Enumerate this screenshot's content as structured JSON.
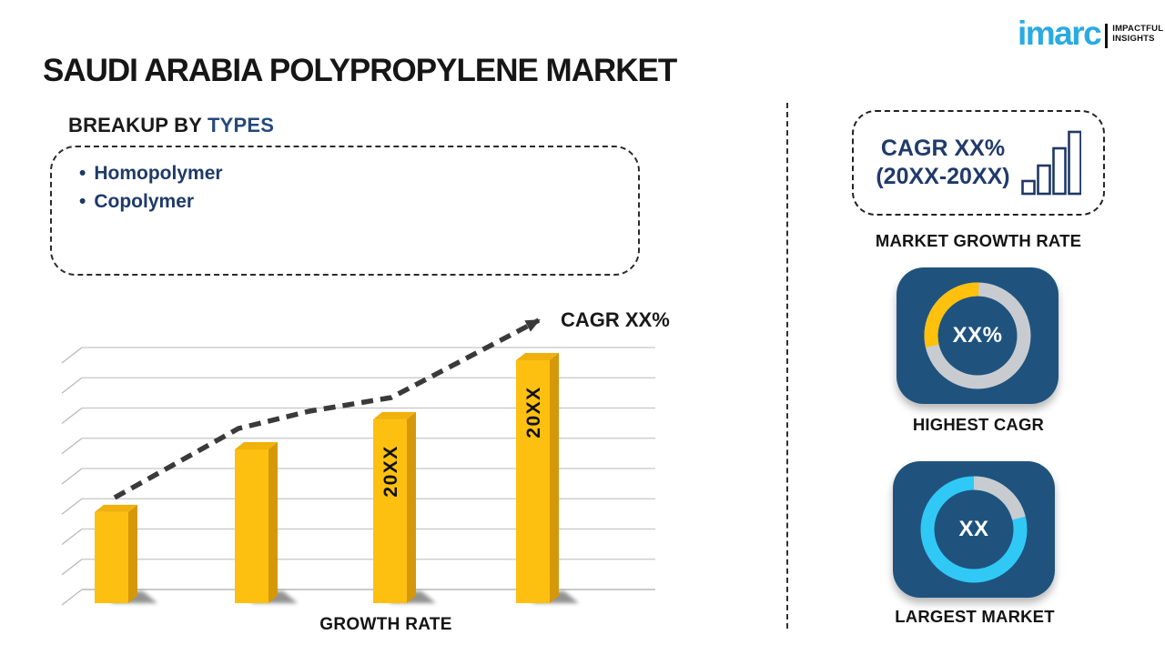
{
  "title": "SAUDI ARABIA POLYPROPYLENE MARKET",
  "logo": {
    "brand": "imarc",
    "tagline_line1": "IMPACTFUL",
    "tagline_line2": "INSIGHTS",
    "brand_color": "#29ABE2"
  },
  "breakup": {
    "heading_prefix": "BREAKUP BY",
    "heading_highlight": "TYPES",
    "bullet": "•",
    "items": [
      "Homopolymer",
      "Copolymer"
    ]
  },
  "chart_data": [
    {
      "type": "bar",
      "title": "",
      "xlabel": "GROWTH RATE",
      "ylabel": "",
      "categories": [
        "",
        "",
        "20XX",
        "20XX"
      ],
      "values": [
        37.5,
        63.3,
        75.7,
        100
      ],
      "value_note": "bar heights as percent of tallest bar; no numeric axis shown (placeholder infographic)",
      "ylim": [
        0,
        100
      ],
      "grid": true,
      "gridlines": 9,
      "trend_label": "CAGR XX%",
      "trend_direction": "up",
      "colors": {
        "front": "#FDC010",
        "top": "#F0B10C",
        "side": "#D5980B",
        "label": "#101010",
        "grid": "#c6c6c6",
        "trend": "#3a3a3a"
      }
    },
    {
      "type": "pie",
      "title": "HIGHEST CAGR",
      "center_label": "XX%",
      "slices": [
        {
          "label": "highlighted share",
          "value": 29,
          "color": "#FFC10E"
        },
        {
          "label": "remainder",
          "value": 71,
          "color": "#C8CCD1"
        }
      ],
      "ring": {
        "base": "#C8CCD1",
        "arc": "#FFC10E",
        "arc_percent": 29,
        "arc_start_deg": 257
      },
      "card_color": "#1F537E"
    },
    {
      "type": "pie",
      "title": "LARGEST MARKET",
      "center_label": "XX",
      "slices": [
        {
          "label": "highlighted share",
          "value": 79,
          "color": "#30C9F6"
        },
        {
          "label": "remainder",
          "value": 21,
          "color": "#C8CCD1"
        }
      ],
      "ring": {
        "base": "#30C9F6",
        "arc": "#C8CCD1",
        "arc_percent": 21,
        "arc_start_deg": 0
      },
      "card_color": "#1F537E"
    }
  ],
  "sidebar": {
    "cagr_line1": "CAGR XX%",
    "cagr_line2": "(20XX-20XX)",
    "icon_bars": [
      14,
      31,
      50,
      68
    ],
    "icon_color": "#1f3864",
    "market_growth_label": "MARKET GROWTH RATE",
    "highest_cagr_label": "HIGHEST CAGR",
    "largest_market_label": "LARGEST MARKET"
  },
  "colors": {
    "navy_heading": "#24497C",
    "navy_text": "#1e3a68",
    "donut_card_blue": "#1F537E"
  }
}
